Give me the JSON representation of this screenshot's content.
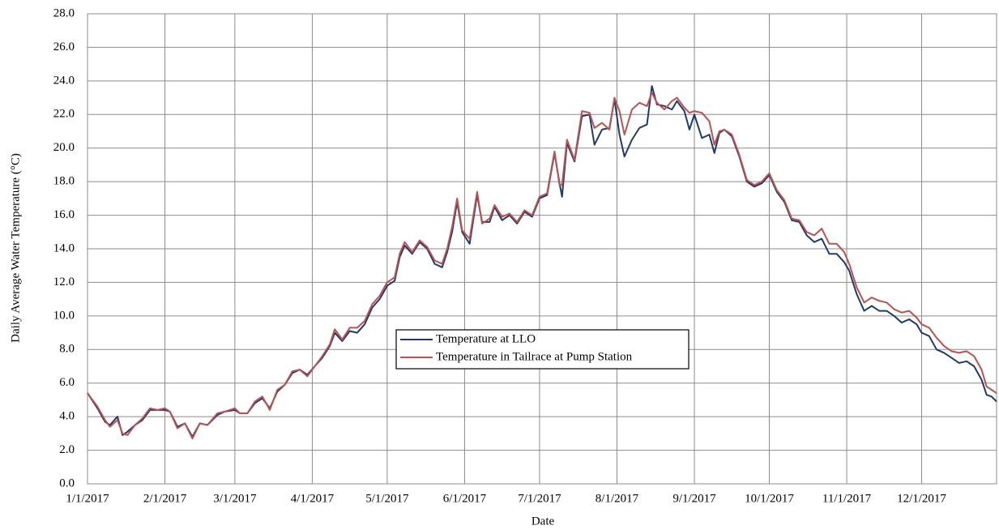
{
  "chart_data": {
    "type": "line",
    "x_label": "Date",
    "y_label": "Daily Average Water Temperature (°C)",
    "x": [
      "2017-01-01",
      "2017-01-05",
      "2017-01-08",
      "2017-01-10",
      "2017-01-13",
      "2017-01-15",
      "2017-01-17",
      "2017-01-20",
      "2017-01-23",
      "2017-01-26",
      "2017-01-29",
      "2017-02-01",
      "2017-02-03",
      "2017-02-06",
      "2017-02-09",
      "2017-02-12",
      "2017-02-15",
      "2017-02-18",
      "2017-02-22",
      "2017-02-25",
      "2017-03-01",
      "2017-03-03",
      "2017-03-06",
      "2017-03-09",
      "2017-03-12",
      "2017-03-15",
      "2017-03-18",
      "2017-03-21",
      "2017-03-24",
      "2017-03-27",
      "2017-03-30",
      "2017-04-02",
      "2017-04-05",
      "2017-04-08",
      "2017-04-10",
      "2017-04-13",
      "2017-04-16",
      "2017-04-19",
      "2017-04-22",
      "2017-04-25",
      "2017-04-28",
      "2017-05-01",
      "2017-05-04",
      "2017-05-06",
      "2017-05-08",
      "2017-05-11",
      "2017-05-14",
      "2017-05-17",
      "2017-05-20",
      "2017-05-23",
      "2017-05-25",
      "2017-05-27",
      "2017-05-29",
      "2017-05-31",
      "2017-06-03",
      "2017-06-06",
      "2017-06-08",
      "2017-06-11",
      "2017-06-13",
      "2017-06-16",
      "2017-06-19",
      "2017-06-22",
      "2017-06-25",
      "2017-06-28",
      "2017-07-01",
      "2017-07-04",
      "2017-07-07",
      "2017-07-09",
      "2017-07-10",
      "2017-07-12",
      "2017-07-15",
      "2017-07-18",
      "2017-07-21",
      "2017-07-23",
      "2017-07-26",
      "2017-07-29",
      "2017-07-31",
      "2017-08-02",
      "2017-08-04",
      "2017-08-07",
      "2017-08-10",
      "2017-08-13",
      "2017-08-15",
      "2017-08-17",
      "2017-08-20",
      "2017-08-23",
      "2017-08-25",
      "2017-08-28",
      "2017-08-30",
      "2017-09-01",
      "2017-09-04",
      "2017-09-07",
      "2017-09-09",
      "2017-09-11",
      "2017-09-13",
      "2017-09-16",
      "2017-09-19",
      "2017-09-22",
      "2017-09-25",
      "2017-09-28",
      "2017-10-01",
      "2017-10-04",
      "2017-10-07",
      "2017-10-10",
      "2017-10-13",
      "2017-10-16",
      "2017-10-19",
      "2017-10-22",
      "2017-10-25",
      "2017-10-28",
      "2017-10-31",
      "2017-11-02",
      "2017-11-05",
      "2017-11-08",
      "2017-11-11",
      "2017-11-14",
      "2017-11-17",
      "2017-11-20",
      "2017-11-23",
      "2017-11-26",
      "2017-11-29",
      "2017-12-01",
      "2017-12-04",
      "2017-12-07",
      "2017-12-10",
      "2017-12-13",
      "2017-12-16",
      "2017-12-19",
      "2017-12-22",
      "2017-12-25",
      "2017-12-27",
      "2017-12-29",
      "2017-12-31"
    ],
    "series": [
      {
        "name": "Temperature at LLO",
        "color": "#1f3a6e",
        "values": [
          5.4,
          4.5,
          3.7,
          3.5,
          4.0,
          2.9,
          3.1,
          3.5,
          3.8,
          4.4,
          4.4,
          4.4,
          4.3,
          3.4,
          3.6,
          2.8,
          3.6,
          3.5,
          4.1,
          4.3,
          4.4,
          4.2,
          4.2,
          4.8,
          5.1,
          4.5,
          5.5,
          5.9,
          6.6,
          6.8,
          6.5,
          7.0,
          7.5,
          8.2,
          9.0,
          8.5,
          9.1,
          9.0,
          9.5,
          10.5,
          11.0,
          11.8,
          12.1,
          13.5,
          14.2,
          13.7,
          14.4,
          14.0,
          13.1,
          12.9,
          13.8,
          15.0,
          16.8,
          15.0,
          14.3,
          17.2,
          15.6,
          15.6,
          16.5,
          15.7,
          16.0,
          15.5,
          16.2,
          15.9,
          17.0,
          17.2,
          19.7,
          17.9,
          17.1,
          20.3,
          19.2,
          21.9,
          22.0,
          20.2,
          21.1,
          21.2,
          22.9,
          20.8,
          19.5,
          20.5,
          21.2,
          21.4,
          23.7,
          22.6,
          22.5,
          22.3,
          22.8,
          22.2,
          21.1,
          22.0,
          20.6,
          20.8,
          19.7,
          20.9,
          21.1,
          20.7,
          19.5,
          18.0,
          17.7,
          17.9,
          18.4,
          17.4,
          16.8,
          15.7,
          15.6,
          14.8,
          14.4,
          14.6,
          13.7,
          13.7,
          13.2,
          12.7,
          11.3,
          10.3,
          10.6,
          10.3,
          10.3,
          10.0,
          9.6,
          9.8,
          9.5,
          9.0,
          8.8,
          8.0,
          7.8,
          7.5,
          7.2,
          7.3,
          7.0,
          6.2,
          5.3,
          5.2,
          4.9
        ]
      },
      {
        "name": "Temperature in Tailrace at Pump Station",
        "color": "#c0504d",
        "values": [
          5.4,
          4.6,
          3.8,
          3.4,
          3.8,
          3.0,
          2.9,
          3.5,
          3.9,
          4.5,
          4.4,
          4.5,
          4.3,
          3.3,
          3.6,
          2.7,
          3.6,
          3.5,
          4.2,
          4.3,
          4.5,
          4.2,
          4.2,
          4.9,
          5.2,
          4.4,
          5.6,
          5.9,
          6.7,
          6.8,
          6.4,
          7.0,
          7.6,
          8.3,
          9.2,
          8.6,
          9.3,
          9.3,
          9.7,
          10.7,
          11.2,
          12.0,
          12.3,
          13.7,
          14.4,
          13.8,
          14.5,
          14.1,
          13.3,
          13.1,
          14.0,
          15.3,
          17.0,
          15.1,
          14.6,
          17.4,
          15.5,
          15.8,
          16.6,
          15.9,
          16.1,
          15.6,
          16.3,
          16.0,
          17.1,
          17.3,
          19.8,
          17.8,
          17.8,
          20.5,
          19.3,
          22.2,
          22.1,
          21.2,
          21.5,
          21.1,
          23.0,
          22.2,
          20.8,
          22.3,
          22.7,
          22.5,
          23.3,
          22.7,
          22.3,
          22.8,
          23.0,
          22.4,
          22.1,
          22.2,
          22.1,
          21.6,
          20.2,
          21.0,
          21.1,
          20.8,
          19.6,
          18.1,
          17.8,
          18.0,
          18.5,
          17.5,
          16.9,
          15.8,
          15.7,
          15.0,
          14.8,
          15.2,
          14.3,
          14.3,
          13.8,
          13.1,
          11.7,
          10.8,
          11.1,
          10.9,
          10.8,
          10.4,
          10.2,
          10.3,
          9.9,
          9.5,
          9.3,
          8.7,
          8.2,
          7.9,
          7.8,
          7.9,
          7.6,
          6.8,
          5.8,
          5.6,
          5.4
        ]
      }
    ],
    "xlim": [
      "2017-01-01",
      "2017-12-31"
    ],
    "xticks": [
      {
        "value": "2017-01-01",
        "label": "1/1/2017"
      },
      {
        "value": "2017-02-01",
        "label": "2/1/2017"
      },
      {
        "value": "2017-03-01",
        "label": "3/1/2017"
      },
      {
        "value": "2017-04-01",
        "label": "4/1/2017"
      },
      {
        "value": "2017-05-01",
        "label": "5/1/2017"
      },
      {
        "value": "2017-06-01",
        "label": "6/1/2017"
      },
      {
        "value": "2017-07-01",
        "label": "7/1/2017"
      },
      {
        "value": "2017-08-01",
        "label": "8/1/2017"
      },
      {
        "value": "2017-09-01",
        "label": "9/1/2017"
      },
      {
        "value": "2017-10-01",
        "label": "10/1/2017"
      },
      {
        "value": "2017-11-01",
        "label": "11/1/2017"
      },
      {
        "value": "2017-12-01",
        "label": "12/1/2017"
      }
    ],
    "ylim": [
      0,
      28
    ],
    "yticks": [
      {
        "value": 0,
        "label": "0.0"
      },
      {
        "value": 2,
        "label": "2.0"
      },
      {
        "value": 4,
        "label": "4.0"
      },
      {
        "value": 6,
        "label": "6.0"
      },
      {
        "value": 8,
        "label": "8.0"
      },
      {
        "value": 10,
        "label": "10.0"
      },
      {
        "value": 12,
        "label": "12.0"
      },
      {
        "value": 14,
        "label": "14.0"
      },
      {
        "value": 16,
        "label": "16.0"
      },
      {
        "value": 18,
        "label": "18.0"
      },
      {
        "value": 20,
        "label": "20.0"
      },
      {
        "value": 22,
        "label": "22.0"
      },
      {
        "value": 24,
        "label": "24.0"
      },
      {
        "value": 26,
        "label": "26.0"
      },
      {
        "value": 28,
        "label": "28.0"
      }
    ],
    "grid": true,
    "legend": "center"
  }
}
